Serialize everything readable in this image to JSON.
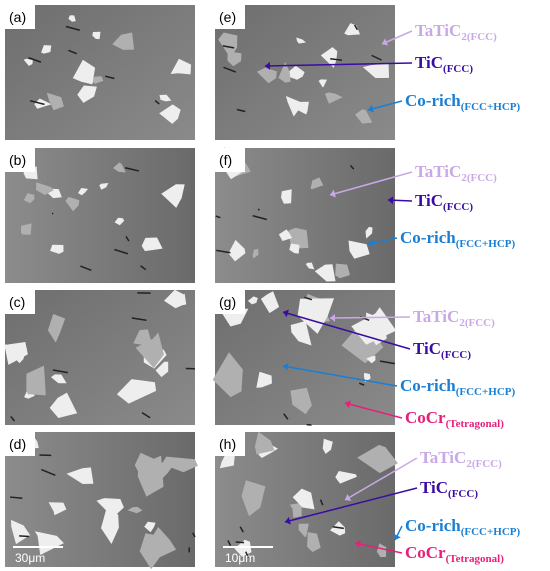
{
  "panels": [
    {
      "label": "(a)"
    },
    {
      "label": "(b)"
    },
    {
      "label": "(c)"
    },
    {
      "label": "(d)",
      "scale_bar": "30μm"
    },
    {
      "label": "(e)",
      "annotations": [
        {
          "text": "TaTiC",
          "sub": "2(FCC)"
        },
        {
          "text": "TiC",
          "sub": "(FCC)"
        },
        {
          "text": "Co-rich",
          "sub": "(FCC+HCP)"
        }
      ]
    },
    {
      "label": "(f)",
      "annotations": [
        {
          "text": "TaTiC",
          "sub": "2(FCC)"
        },
        {
          "text": "TiC",
          "sub": "(FCC)"
        },
        {
          "text": "Co-rich",
          "sub": "(FCC+HCP)"
        }
      ]
    },
    {
      "label": "(g)",
      "annotations": [
        {
          "text": "TaTiC",
          "sub": "2(FCC)"
        },
        {
          "text": "TiC",
          "sub": "(FCC)"
        },
        {
          "text": "Co-rich",
          "sub": "(FCC+HCP)"
        },
        {
          "text": "CoCr",
          "sub": "(Tetragonal)"
        }
      ]
    },
    {
      "label": "(h)",
      "scale_bar": "10μm",
      "annotations": [
        {
          "text": "TaTiC",
          "sub": "2(FCC)"
        },
        {
          "text": "TiC",
          "sub": "(FCC)"
        },
        {
          "text": "Co-rich",
          "sub": "(FCC+HCP)"
        },
        {
          "text": "CoCr",
          "sub": "(Tetragonal)"
        }
      ]
    }
  ]
}
